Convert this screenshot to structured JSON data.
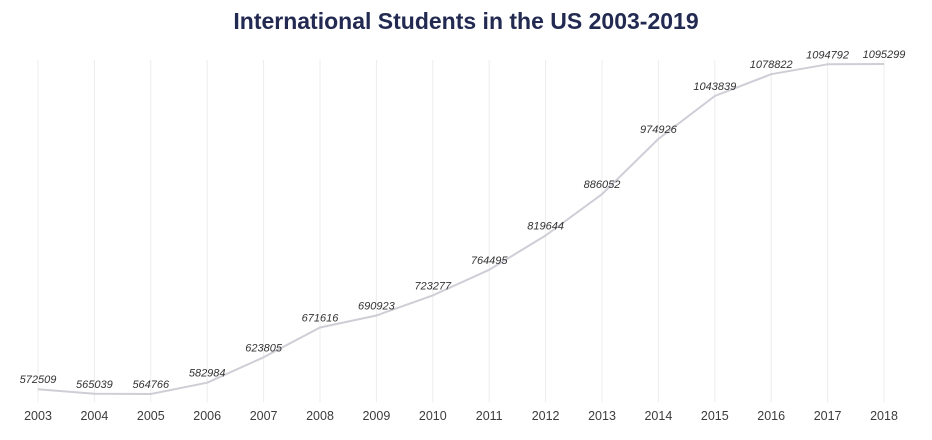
{
  "chart_data": {
    "type": "line",
    "title": "International Students in the US 2003-2019",
    "xlabel": "",
    "ylabel": "",
    "categories": [
      "2003",
      "2004",
      "2005",
      "2006",
      "2007",
      "2008",
      "2009",
      "2010",
      "2011",
      "2012",
      "2013",
      "2014",
      "2015",
      "2016",
      "2017",
      "2018"
    ],
    "series": [
      {
        "values": [
          572509,
          565039,
          564766,
          582984,
          623805,
          671616,
          690923,
          723277,
          764495,
          819644,
          886052,
          974926,
          1043839,
          1078822,
          1094792,
          1095299
        ]
      }
    ],
    "ylim": [
      564766,
      1095299
    ],
    "grid": "vertical",
    "legend": "none",
    "colors": {
      "line": "#cfcdd6",
      "grid": "#ececec",
      "title": "#232a52"
    }
  }
}
